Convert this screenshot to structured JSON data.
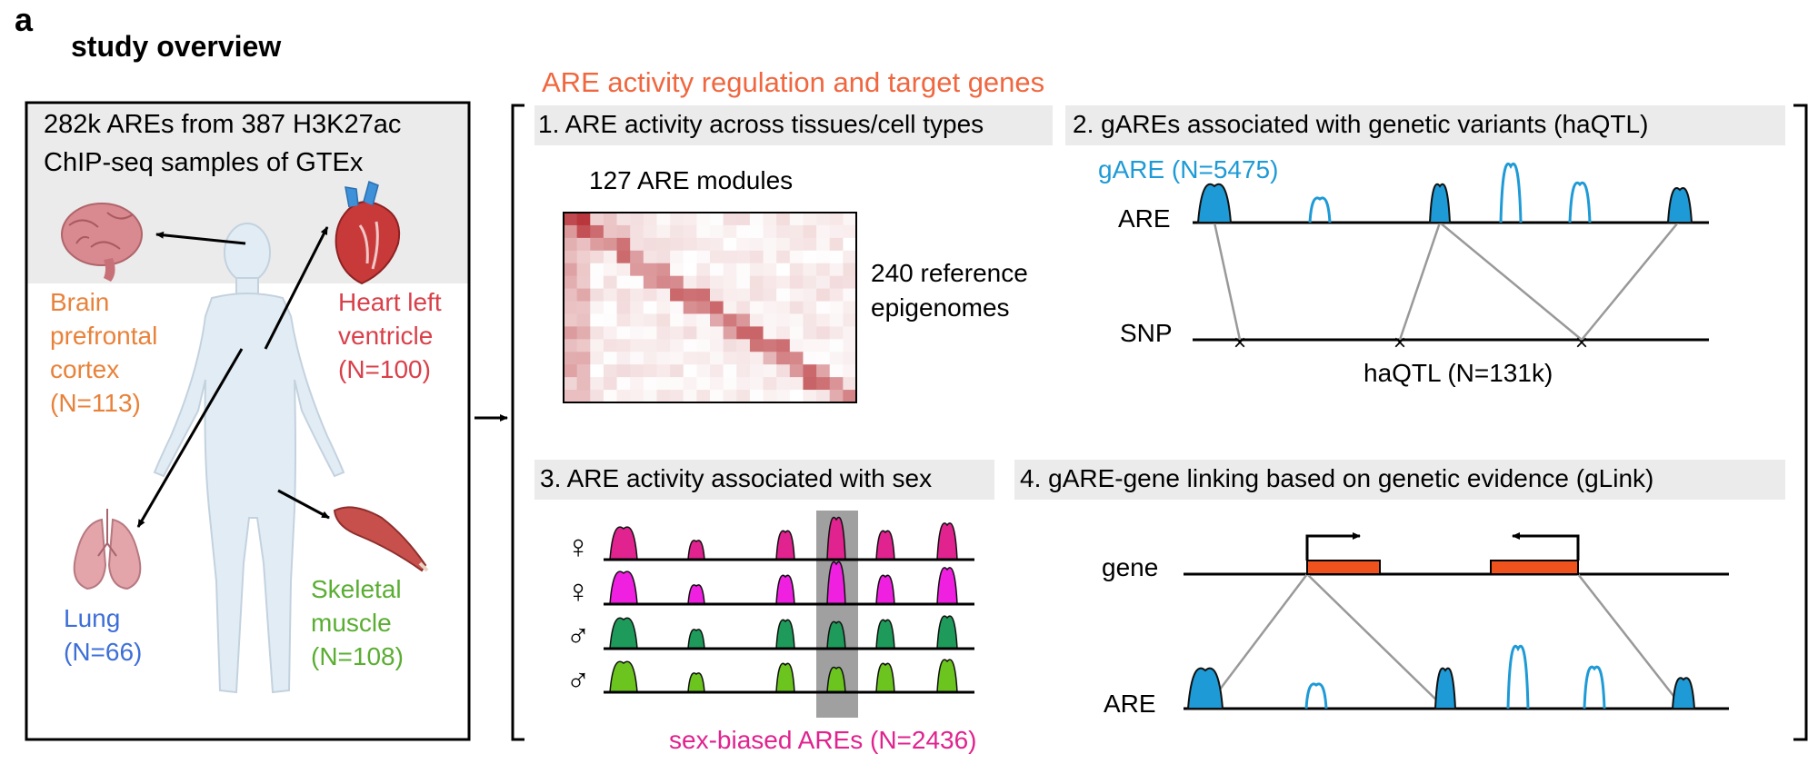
{
  "panel_letter": "a",
  "title": "study overview",
  "left_box": {
    "line1": "282k AREs from 387 H3K27ac",
    "line2": "ChIP-seq samples of GTEx"
  },
  "tissues": {
    "brain": {
      "l1": "Brain",
      "l2": "prefrontal",
      "l3": "cortex",
      "n": "(N=113)",
      "color": "#E8823A"
    },
    "heart": {
      "l1": "Heart left",
      "l2": "ventricle",
      "n": "(N=100)",
      "color": "#D9404A"
    },
    "lung": {
      "l1": "Lung",
      "n": "(N=66)",
      "color": "#3E6FD8"
    },
    "muscle": {
      "l1": "Skeletal",
      "l2": "muscle",
      "n": "(N=108)",
      "color": "#5AAE32"
    }
  },
  "section_title": "ARE activity regulation and target genes",
  "section_title_color": "#F0673F",
  "panel1": {
    "header": "1. ARE activity across tissues/cell types",
    "modules": "127 ARE modules",
    "ref1": "240 reference",
    "ref2": "epigenomes"
  },
  "panel2": {
    "header": "2. gAREs associated with genetic variants (haQTL)",
    "gare": "gARE (N=5475)",
    "are": "ARE",
    "snp": "SNP",
    "haqtl": "haQTL (N=131k)",
    "snp_mark": "×"
  },
  "panel3": {
    "header": "3. ARE activity associated with sex",
    "female": "♀",
    "male": "♂",
    "footer": "sex-biased AREs (N=2436)",
    "female_colors": [
      "#E0238E",
      "#F020E0"
    ],
    "male_colors": [
      "#1E9A5A",
      "#6BC51E"
    ]
  },
  "panel4": {
    "header": "4. gARE-gene linking based on genetic evidence (gLink)",
    "gene": "gene",
    "are": "ARE"
  },
  "colors": {
    "gare_blue": "#1E9AD6",
    "header_bg": "#EBEBEB",
    "gene_orange": "#F0521E",
    "link_gray": "#999999",
    "sex_band": "#A0A0A0"
  }
}
